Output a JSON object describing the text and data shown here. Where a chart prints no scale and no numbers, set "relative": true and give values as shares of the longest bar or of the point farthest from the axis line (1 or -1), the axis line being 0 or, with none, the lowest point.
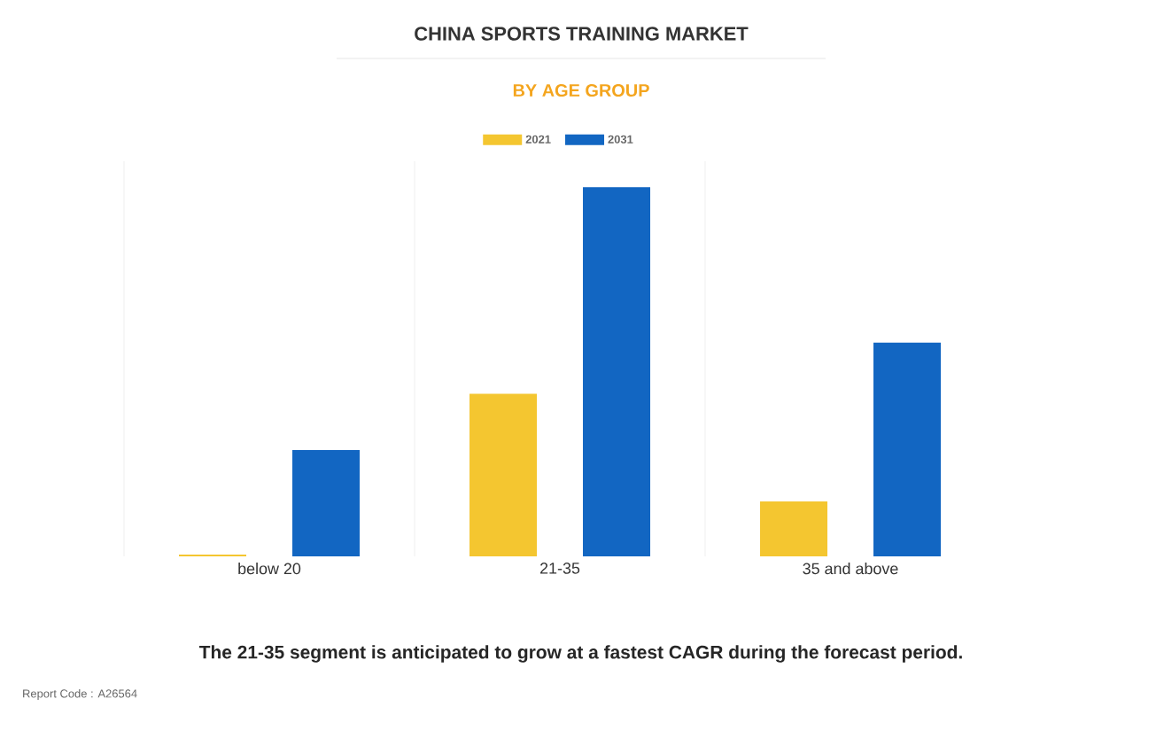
{
  "chart_data": {
    "type": "bar",
    "title": "CHINA SPORTS TRAINING MARKET",
    "subtitle": "BY AGE GROUP",
    "categories": [
      "below 20",
      "21-35",
      "35 and above"
    ],
    "series": [
      {
        "name": "2021",
        "color": "#f4c630",
        "values": [
          0.005,
          0.44,
          0.149
        ]
      },
      {
        "name": "2031",
        "color": "#1266c2",
        "values": [
          0.288,
          1,
          0.579
        ]
      }
    ],
    "relative": true,
    "grid": true,
    "legend": "top",
    "annotations": [
      "The 21-35 segment is anticipated to grow at a fastest CAGR during the forecast period.",
      "Report Code : A26564"
    ]
  }
}
